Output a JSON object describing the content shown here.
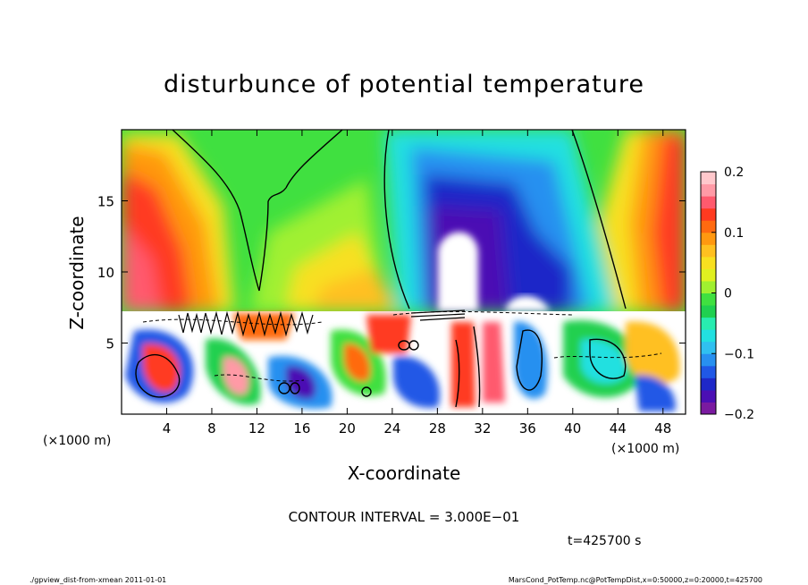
{
  "chart_data": {
    "type": "heatmap",
    "title": "disturbunce of potential temperature",
    "xlabel": "X-coordinate",
    "ylabel": "Z-coordinate",
    "x_unit_left": "(×1000 m)",
    "x_unit_right": "(×1000 m)",
    "xlim": [
      0,
      50
    ],
    "ylim": [
      0,
      20
    ],
    "x_ticks": [
      4,
      8,
      12,
      16,
      20,
      24,
      28,
      32,
      36,
      40,
      44,
      48
    ],
    "y_ticks": [
      5,
      10,
      15
    ],
    "colorbar": {
      "ticks": [
        0.2,
        0.1,
        0,
        -0.1,
        -0.2
      ],
      "tick_labels": [
        "0.2",
        "0.1",
        "0",
        "−0.1",
        "−0.2"
      ],
      "range": [
        -0.2,
        0.2
      ],
      "colors": [
        "#7a1aa0",
        "#4b0fb4",
        "#1e28c8",
        "#2058e6",
        "#2890f0",
        "#30c0f0",
        "#22e0e0",
        "#28ecb0",
        "#20d050",
        "#40e040",
        "#a0f030",
        "#e0f020",
        "#f8e020",
        "#ffc020",
        "#ff9810",
        "#ff6a10",
        "#ff3a20",
        "#ff5a6e",
        "#ff9aa6",
        "#ffc8cc"
      ]
    },
    "contour_interval_text": "CONTOUR INTERVAL = 3.000E−01",
    "time_text": "t=425700 s"
  },
  "footer": {
    "left": "./gpview_dist-from-xmean   2011-01-01",
    "right": "MarsCond_PotTemp.nc@PotTempDist,x=0:50000,z=0:20000,t=425700"
  }
}
